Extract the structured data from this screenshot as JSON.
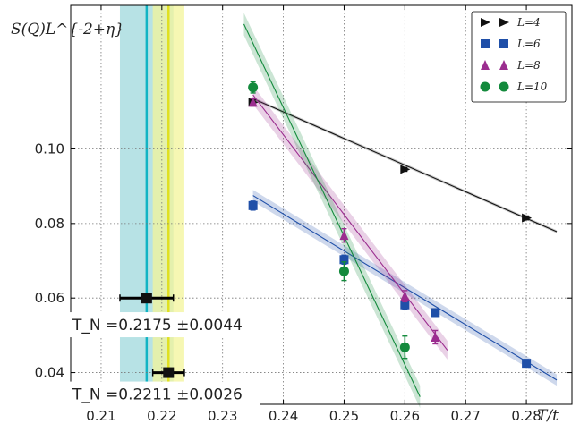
{
  "chart_data": {
    "type": "scatter",
    "xlabel": "T/t",
    "ylabel": "S(Q)L^{-2+η}",
    "xlim": [
      0.205,
      0.2875
    ],
    "ylim": [
      0.0315,
      0.1385
    ],
    "xticks": [
      0.21,
      0.22,
      0.23,
      0.24,
      0.25,
      0.26,
      0.27,
      0.28
    ],
    "xtick_labels": [
      "0.21",
      "0.22",
      "0.23",
      "0.24",
      "0.25",
      "0.26",
      "0.27",
      "0.28"
    ],
    "yticks": [
      0.04,
      0.06,
      0.08,
      0.1
    ],
    "ytick_labels": [
      "0.04",
      "0.06",
      "0.08",
      "0.10"
    ],
    "grid": true,
    "legend_position": "top-right",
    "series": [
      {
        "name": "L=4",
        "color": "#111111",
        "marker": "triangle-right",
        "x": [
          0.235,
          0.26,
          0.28
        ],
        "y": [
          0.1125,
          0.0945,
          0.0815
        ],
        "yerr": [
          0.0005,
          0.0005,
          0.0005
        ],
        "fit": {
          "x": [
            0.235,
            0.285
          ],
          "y": [
            0.1135,
            0.0778
          ],
          "band": 0.0004
        }
      },
      {
        "name": "L=6",
        "color": "#1f4fa8",
        "marker": "square",
        "x": [
          0.235,
          0.25,
          0.26,
          0.265,
          0.28
        ],
        "y": [
          0.0848,
          0.0703,
          0.0582,
          0.0561,
          0.0425
        ],
        "yerr": [
          0.0012,
          0.0012,
          0.0012,
          0.001,
          0.001
        ],
        "fit": {
          "x": [
            0.235,
            0.285
          ],
          "y": [
            0.0875,
            0.038
          ],
          "band": 0.0015
        }
      },
      {
        "name": "L=8",
        "color": "#9b2d8f",
        "marker": "triangle-up",
        "x": [
          0.235,
          0.25,
          0.26,
          0.265
        ],
        "y": [
          0.1125,
          0.0768,
          0.0605,
          0.0495
        ],
        "yerr": [
          0.001,
          0.0018,
          0.0015,
          0.0018
        ],
        "fit": {
          "x": [
            0.235,
            0.267
          ],
          "y": [
            0.1145,
            0.046
          ],
          "band": 0.0025
        }
      },
      {
        "name": "L=10",
        "color": "#138a3c",
        "marker": "circle",
        "x": [
          0.235,
          0.25,
          0.26
        ],
        "y": [
          0.1165,
          0.0672,
          0.0468
        ],
        "yerr": [
          0.0015,
          0.0025,
          0.003
        ],
        "fit": {
          "x": [
            0.2335,
            0.2625
          ],
          "y": [
            0.1335,
            0.0335
          ],
          "band": 0.003
        }
      }
    ],
    "critical_estimates": [
      {
        "label": "T_N =0.2175 ±0.0044",
        "center": 0.2175,
        "error": 0.0044,
        "y": 0.06,
        "line_color": "#12b4c4",
        "band_color": "#9fd8dc"
      },
      {
        "label": "T_N =0.2211 ±0.0026",
        "center": 0.2211,
        "error": 0.0026,
        "y": 0.04,
        "line_color": "#e0e020",
        "band_color": "#f3f49a"
      }
    ]
  }
}
